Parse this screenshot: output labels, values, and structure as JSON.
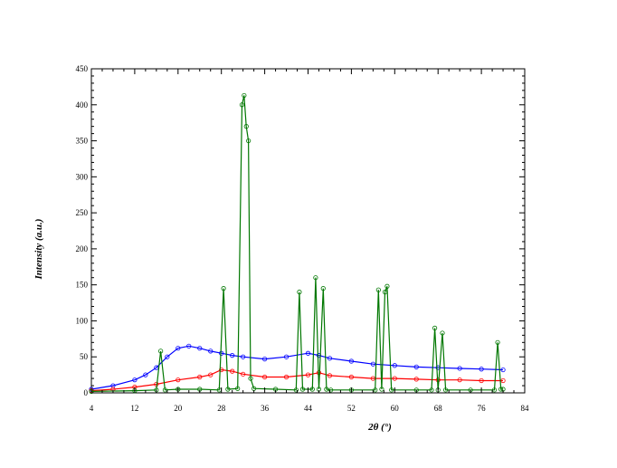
{
  "chart_data": {
    "type": "scatter",
    "title": "",
    "xlabel": "2θ (°)",
    "ylabel": "Intensity (a.u.)",
    "xlim": [
      4,
      84
    ],
    "ylim": [
      0,
      450
    ],
    "x_ticks": [
      "4",
      "12",
      "20",
      "28",
      "36",
      "44",
      "52",
      "60",
      "68",
      "76",
      "84"
    ],
    "y_ticks": [
      "0",
      "50",
      "100",
      "150",
      "200",
      "250",
      "300",
      "350",
      "400",
      "450"
    ],
    "grid": false,
    "legend": "none",
    "series": [
      {
        "color": "#0000ff",
        "marker": "open-circle",
        "x": [
          4,
          8,
          12,
          14,
          16,
          18,
          20,
          22,
          24,
          26,
          28,
          30,
          32,
          36,
          40,
          44,
          46,
          48,
          52,
          56,
          60,
          64,
          68,
          72,
          76,
          80
        ],
        "y": [
          5,
          10,
          18,
          25,
          35,
          50,
          62,
          65,
          62,
          58,
          55,
          52,
          50,
          47,
          50,
          55,
          52,
          48,
          44,
          40,
          38,
          36,
          35,
          34,
          33,
          32
        ]
      },
      {
        "color": "#ff0000",
        "marker": "open-circle",
        "x": [
          4,
          8,
          12,
          16,
          20,
          24,
          26,
          28,
          30,
          32,
          36,
          40,
          44,
          46,
          48,
          52,
          56,
          60,
          64,
          68,
          72,
          76,
          80
        ],
        "y": [
          3,
          5,
          8,
          12,
          18,
          22,
          25,
          32,
          30,
          26,
          22,
          22,
          25,
          28,
          24,
          22,
          20,
          20,
          19,
          18,
          18,
          17,
          17
        ]
      },
      {
        "color": "#007700",
        "marker": "open-circle",
        "x": [
          4,
          12,
          16,
          16.8,
          17.6,
          20,
          24,
          27.6,
          28.4,
          29.2,
          31,
          31.8,
          32.2,
          32.6,
          33.0,
          33.4,
          34,
          38,
          41.8,
          42.4,
          43,
          44.8,
          45.4,
          46,
          46.8,
          47.4,
          48.2,
          52,
          56.4,
          57,
          57.6,
          58.2,
          58.6,
          59.4,
          64,
          66.8,
          67.4,
          68,
          68.8,
          69.4,
          74,
          78.4,
          79,
          79.6,
          80
        ],
        "y": [
          2,
          3,
          4,
          58,
          4,
          5,
          5,
          4,
          145,
          5,
          6,
          400,
          413,
          370,
          350,
          20,
          6,
          5,
          4,
          140,
          5,
          5,
          160,
          5,
          145,
          5,
          4,
          4,
          4,
          143,
          5,
          140,
          148,
          4,
          4,
          4,
          90,
          4,
          83,
          4,
          4,
          4,
          70,
          5,
          5
        ]
      }
    ]
  }
}
